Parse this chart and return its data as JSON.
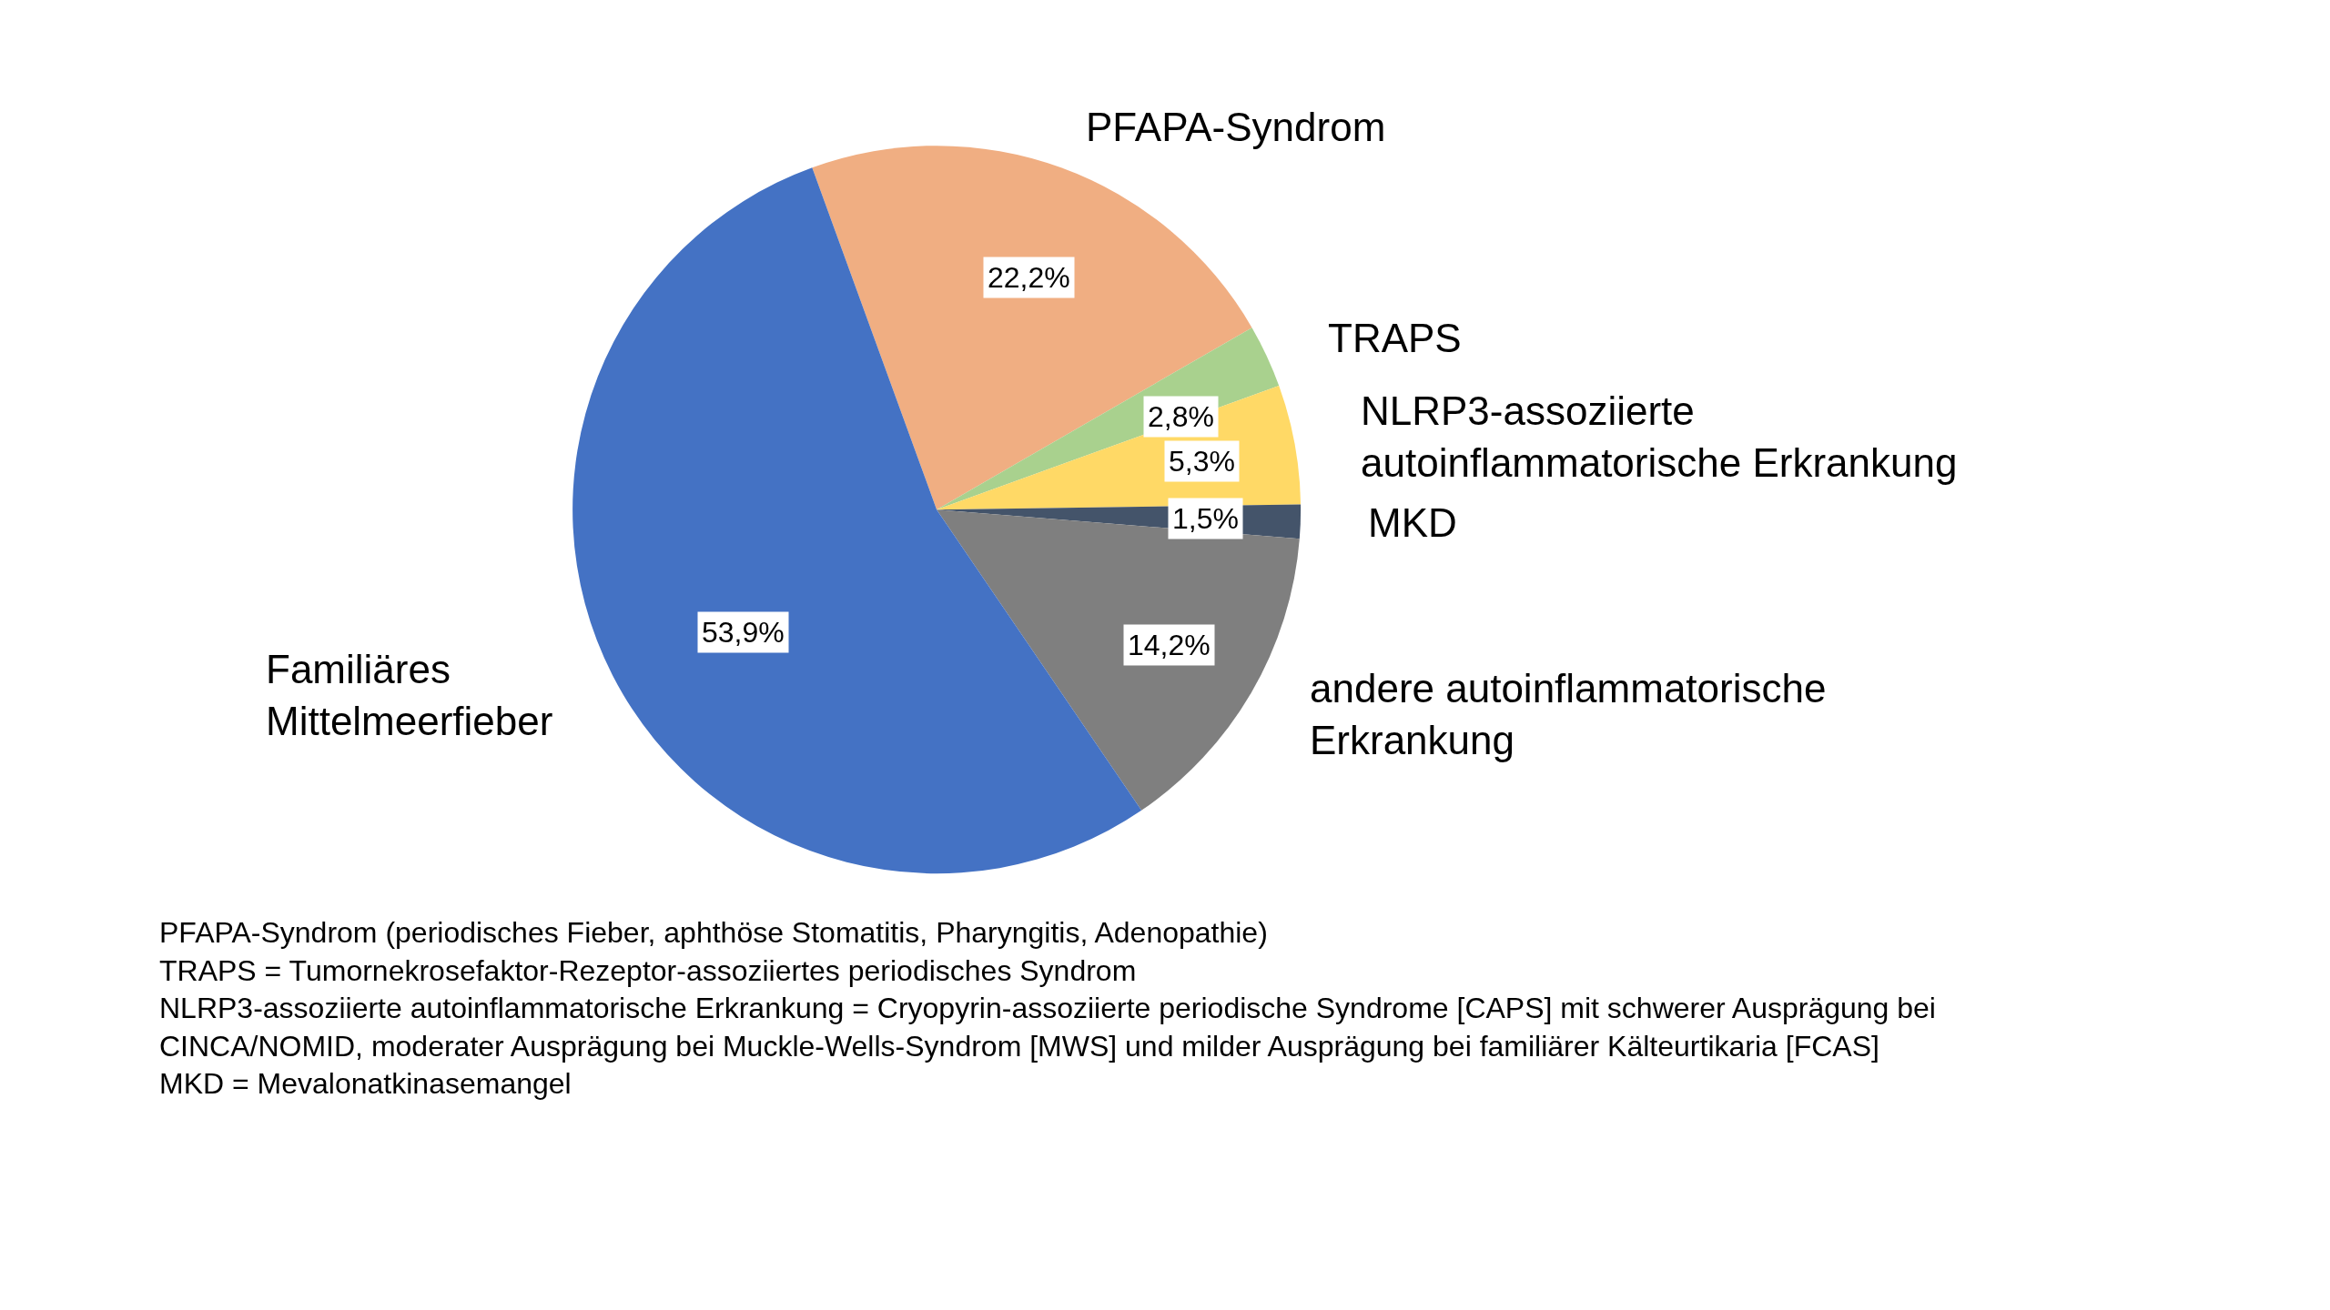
{
  "chart_data": {
    "type": "pie",
    "categories": [
      "PFAPA-Syndrom",
      "TRAPS",
      "NLRP3-assoziierte autoinflammatorische Erkrankung",
      "MKD",
      "andere autoinflammatorische Erkrankung",
      "Familiäres Mittelmeerfieber"
    ],
    "values": [
      22.2,
      2.8,
      5.3,
      1.5,
      14.2,
      53.9
    ],
    "value_labels": [
      "22,2%",
      "2,8%",
      "5,3%",
      "1,5%",
      "14,2%",
      "53,9%"
    ],
    "colors": [
      "#f0ae82",
      "#a9d18e",
      "#ffd966",
      "#44546a",
      "#7f7f7f",
      "#4472c4"
    ],
    "annotations": [
      "PFAPA-Syndrom (periodisches Fieber, aphthöse Stomatitis, Pharyngitis, Adenopathie)",
      "TRAPS = Tumornekrosefaktor-Rezeptor-assoziiertes periodisches Syndrom",
      "NLRP3-assoziierte autoinflammatorische Erkrankung = Cryopyrin-assoziierte periodische Syndrome [CAPS] mit schwerer Ausprägung bei CINCA/NOMID, moderater Ausprägung bei Muckle-Wells-Syndrom [MWS] und milder Ausprägung bei familiärer Kälteurtikaria [FCAS]",
      "MKD = Mevalonatkinasemangel"
    ],
    "legend": false
  }
}
